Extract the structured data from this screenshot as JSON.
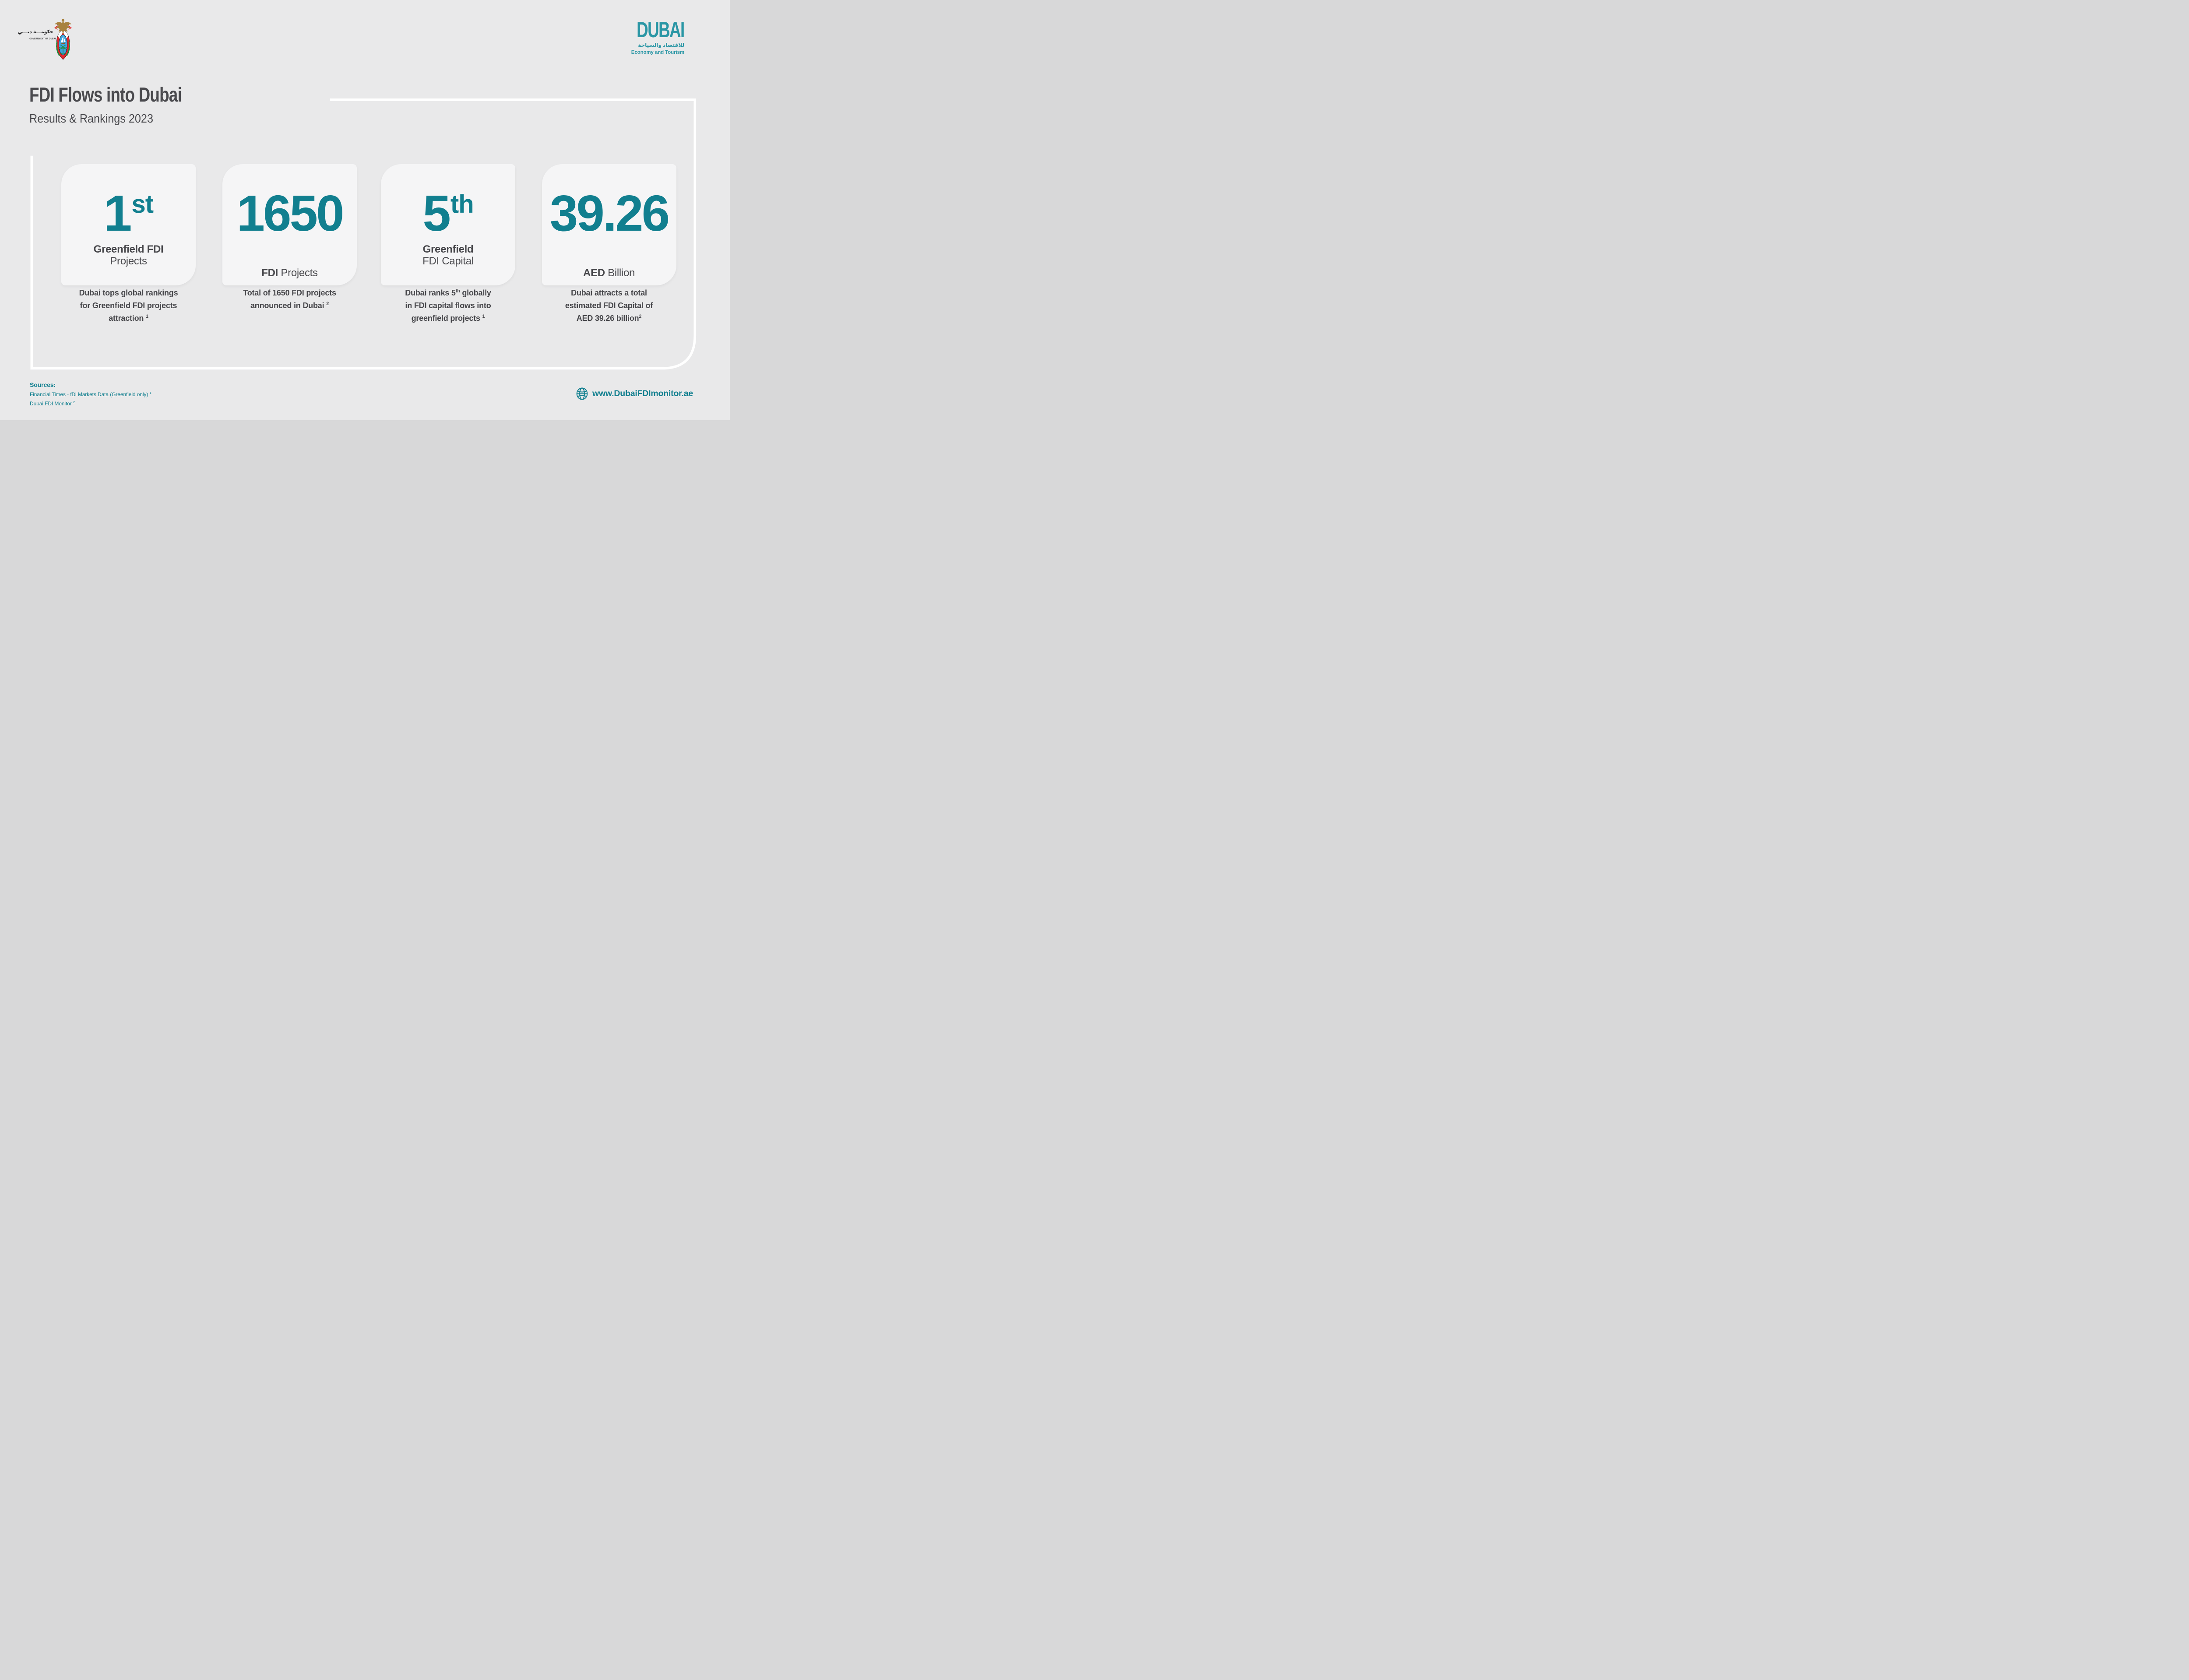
{
  "page": {
    "background": "#e9e9ea"
  },
  "colors": {
    "accent_teal": "#117F8F",
    "logo_teal": "#2A96A5",
    "dark_text": "#48484C",
    "card_background": "#F5F5F6",
    "frame_line": "#FFFFFF",
    "emblem_red": "#E3262D",
    "emblem_blue": "#3BA3DC",
    "emblem_green": "#1E8C3C",
    "emblem_gold": "#A8823E"
  },
  "header": {
    "gov_logo": {
      "arabic": "حكومـــة دبـــي",
      "english": "GOVERNMENT OF DUBAI",
      "emblem_icon": "dubai-coat-of-arms"
    },
    "det_logo": {
      "wordmark": "DUBAI",
      "arabic": "للاقتصاد والسياحة",
      "english": "Economy and Tourism"
    },
    "title": "FDI Flows into Dubai",
    "subtitle": "Results & Rankings 2023"
  },
  "cards": [
    {
      "value": "1",
      "value_suffix": "st",
      "label_lines": [
        [
          {
            "text": "Greenfield FDI",
            "bold": true
          }
        ],
        [
          {
            "text": "Projects",
            "bold": false
          }
        ]
      ],
      "description_lines": [
        [
          {
            "text": "Dubai tops global rankings"
          }
        ],
        [
          {
            "text": "for Greenfield FDI projects"
          }
        ],
        [
          {
            "text": "attraction "
          },
          {
            "text": "1",
            "sup": true
          }
        ]
      ]
    },
    {
      "value": "1650",
      "value_suffix": "",
      "label_lines": [
        [
          {
            "text": "FDI",
            "bold": true
          },
          {
            "text": " Projects",
            "bold": false
          }
        ]
      ],
      "description_lines": [
        [
          {
            "text": "Total of 1650 FDI projects"
          }
        ],
        [
          {
            "text": "announced in Dubai "
          },
          {
            "text": "2",
            "sup": true
          }
        ]
      ]
    },
    {
      "value": "5",
      "value_suffix": "th",
      "label_lines": [
        [
          {
            "text": "Greenfield",
            "bold": true
          }
        ],
        [
          {
            "text": "FDI Capital",
            "bold": false
          }
        ]
      ],
      "description_lines": [
        [
          {
            "text": "Dubai ranks 5"
          },
          {
            "text": "th",
            "sup": true
          },
          {
            "text": " globally"
          }
        ],
        [
          {
            "text": "in FDI capital flows into"
          }
        ],
        [
          {
            "text": "greenfield projects "
          },
          {
            "text": "1",
            "sup": true
          }
        ]
      ]
    },
    {
      "value": "39.26",
      "value_suffix": "",
      "label_lines": [
        [
          {
            "text": "AED",
            "bold": true
          },
          {
            "text": " Billion",
            "bold": false
          }
        ]
      ],
      "description_lines": [
        [
          {
            "text": "Dubai attracts a total"
          }
        ],
        [
          {
            "text": "estimated FDI Capital of"
          }
        ],
        [
          {
            "text": "AED 39.26 billion"
          },
          {
            "text": "2",
            "sup": true
          }
        ]
      ]
    }
  ],
  "footer": {
    "sources_heading": "Sources:",
    "sources": [
      {
        "text": "Financial Times - fDi Markets Data (Greenfield only) ",
        "sup": "1"
      },
      {
        "text": "Dubai FDI Monitor ",
        "sup": "2"
      }
    ],
    "website": "www.DubaiFDImonitor.ae",
    "website_icon": "globe-icon"
  }
}
